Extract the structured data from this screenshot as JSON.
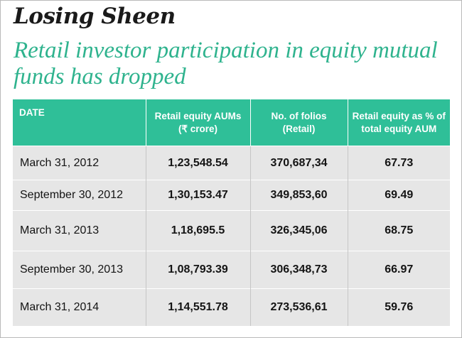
{
  "title": "Losing Sheen",
  "subtitle": "Retail investor participation in equity mutual funds has dropped",
  "colors": {
    "accent": "#2fbf98",
    "subtitle": "#2fb38e",
    "row_bg": "#e6e6e6"
  },
  "table": {
    "headers": [
      {
        "line1": "DATE",
        "line2": ""
      },
      {
        "line1": "Retail equity AUMs",
        "line2": "(₹ crore)"
      },
      {
        "line1": "No. of folios",
        "line2": "(Retail)"
      },
      {
        "line1": "Retail equity as % of",
        "line2": "total equity AUM"
      }
    ],
    "rows": [
      [
        "March 31, 2012",
        "1,23,548.54",
        "370,687,34",
        "67.73"
      ],
      [
        "September 30, 2012",
        "1,30,153.47",
        "349,853,60",
        "69.49"
      ],
      [
        "March 31, 2013",
        "1,18,695.5",
        "326,345,06",
        "68.75"
      ],
      [
        "September 30, 2013",
        "1,08,793.39",
        "306,348,73",
        "66.97"
      ],
      [
        "March 31, 2014",
        "1,14,551.78",
        "273,536,61",
        "59.76"
      ]
    ]
  }
}
